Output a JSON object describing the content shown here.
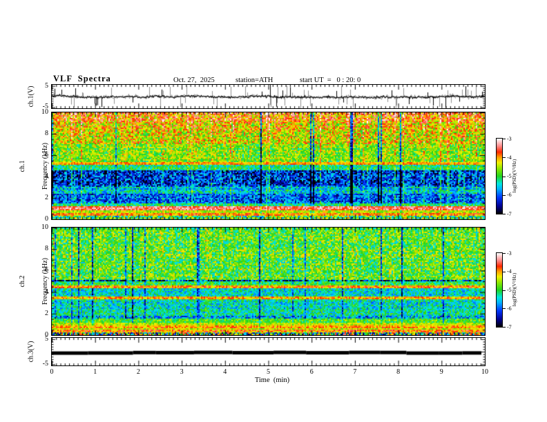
{
  "header": {
    "title": "VLF  Spectra",
    "date": "Oct. 27,  2025",
    "station": "station=ATH",
    "start_ut": "start UT  =   0 : 20: 0"
  },
  "axes": {
    "time": {
      "label": "Time  (min)",
      "tick_labels": [
        "0",
        "1",
        "2",
        "3",
        "4",
        "5",
        "6",
        "7",
        "8",
        "9",
        "10"
      ],
      "range": [
        0,
        10
      ],
      "major_step": 1,
      "minor_step": 0.1
    },
    "freq": {
      "tick_labels": [
        "10",
        "8",
        "6",
        "4",
        "2",
        "0"
      ],
      "range": [
        0,
        10
      ],
      "major_step": 2,
      "minor_step": 0.5
    },
    "volt": {
      "tick_labels": [
        "5",
        "-5"
      ],
      "range": [
        -5,
        5
      ]
    }
  },
  "ylabels": {
    "ch1v": "ch.1(V)",
    "ch1spec": [
      "ch.1",
      "Frequency (kHz)"
    ],
    "ch2spec": [
      "ch.2",
      "Frequency (kHz)"
    ],
    "ch3v": "ch.3(V)"
  },
  "colorbar": {
    "label": "log(PSD)(V²/Hz)",
    "tick_labels": [
      "-3",
      "-4",
      "-5",
      "-6",
      "-7"
    ]
  },
  "colormap": [
    [
      0.0,
      "#000000"
    ],
    [
      0.1,
      "#000090"
    ],
    [
      0.22,
      "#0038ff"
    ],
    [
      0.33,
      "#00b4ff"
    ],
    [
      0.4,
      "#00e8e0"
    ],
    [
      0.5,
      "#22d41e"
    ],
    [
      0.6,
      "#8ce800"
    ],
    [
      0.68,
      "#f0f000"
    ],
    [
      0.75,
      "#ffa000"
    ],
    [
      0.82,
      "#ff2800"
    ],
    [
      0.9,
      "#ff8c8c"
    ],
    [
      1.0,
      "#ffffff"
    ]
  ],
  "chart_data": [
    {
      "type": "line",
      "name": "ch1-voltage-waveform",
      "x_range": [
        0,
        10
      ],
      "x_unit": "min",
      "y_range": [
        -5,
        5
      ],
      "y_unit": "V",
      "summary": "Broadband noisy waveform, mean about +0.4 V, with frequent impulsive spikes reaching the +5/-5 V limits; gray high-frequency noise halo behind black trace",
      "render": {
        "seed": 101,
        "baseline": 0.4,
        "walk": 0.22,
        "noise": 0.45,
        "gray_noise": 1.0,
        "spike_prob": 0.045,
        "gray_spike_prob": 0.075,
        "spike_amp_min": 2.0,
        "spike_amp_max": 5.4
      }
    },
    {
      "type": "heatmap",
      "name": "ch1-spectrogram",
      "x_range": [
        0,
        10
      ],
      "x_unit": "min",
      "y_range": [
        0,
        10
      ],
      "y_unit": "kHz",
      "z_range": [
        -7,
        -3
      ],
      "z_label": "log(PSD)(V²/Hz)",
      "bands_format": [
        "f_lo_kHz",
        "f_hi_kHz",
        "mean_level",
        "noise",
        "streak_gain"
      ],
      "bands": [
        [
          9.0,
          10.01,
          -3.95,
          0.85,
          1.0
        ],
        [
          7.0,
          9.0,
          -4.3,
          0.85,
          1.0
        ],
        [
          5.4,
          7.0,
          -4.75,
          0.7,
          1.0
        ],
        [
          5.05,
          5.4,
          -3.95,
          0.35,
          0.3
        ],
        [
          4.6,
          5.05,
          -5.1,
          0.6,
          0.8
        ],
        [
          3.0,
          4.6,
          -6.25,
          0.95,
          1.4
        ],
        [
          2.4,
          3.0,
          -5.6,
          0.7,
          1.0
        ],
        [
          1.5,
          2.4,
          -5.95,
          0.8,
          1.0
        ],
        [
          1.25,
          1.5,
          -5.05,
          0.6,
          0.5
        ],
        [
          0.8,
          1.25,
          -3.55,
          0.45,
          0.25
        ],
        [
          0.55,
          0.8,
          -4.6,
          0.5,
          0.4
        ],
        [
          0.3,
          0.55,
          -3.85,
          0.5,
          0.25
        ],
        [
          0.0,
          0.3,
          -4.9,
          1.1,
          0.6
        ]
      ],
      "features": [
        "yellow/orange intense band 8-10 kHz with red vertical streaks",
        "dark blue/black band 3-4.6 kHz with vertical striping",
        "narrow red line near 5.2 kHz",
        "bright pale-yellow horizontal band near 1 kHz and 0.4 kHz",
        "impulsive full-height vertical streaks throughout"
      ],
      "render": {
        "seed": 7,
        "dark_prob": 0.05,
        "dark_amp": -1.5,
        "hot_prob": 0.055,
        "hot_amp": 0.5,
        "jitter": 0.35
      }
    },
    {
      "type": "heatmap",
      "name": "ch2-spectrogram",
      "x_range": [
        0,
        10
      ],
      "x_unit": "min",
      "y_range": [
        0,
        10
      ],
      "y_unit": "kHz",
      "z_range": [
        -7,
        -3
      ],
      "z_label": "log(PSD)(V²/Hz)",
      "bands_format": [
        "f_lo_kHz",
        "f_hi_kHz",
        "mean_level",
        "noise",
        "streak_gain"
      ],
      "bands": [
        [
          5.18,
          10.01,
          -4.85,
          0.75,
          1.0
        ],
        [
          4.98,
          5.18,
          -6.4,
          1.3,
          0.6
        ],
        [
          4.58,
          4.98,
          -5.05,
          0.6,
          0.6
        ],
        [
          4.38,
          4.58,
          -4.05,
          0.55,
          0.3
        ],
        [
          3.55,
          4.38,
          -5.45,
          0.6,
          0.7
        ],
        [
          3.3,
          3.55,
          -4.1,
          0.55,
          0.3
        ],
        [
          1.85,
          3.3,
          -5.35,
          0.65,
          0.7
        ],
        [
          1.55,
          1.85,
          -5.75,
          0.9,
          0.7
        ],
        [
          1.1,
          1.55,
          -4.95,
          0.55,
          0.5
        ],
        [
          0.95,
          1.1,
          -4.4,
          0.5,
          0.3
        ],
        [
          0.7,
          0.95,
          -3.95,
          0.45,
          0.25
        ],
        [
          0.5,
          0.7,
          -4.35,
          0.5,
          0.3
        ],
        [
          0.3,
          0.5,
          -3.95,
          0.6,
          0.3
        ],
        [
          0.0,
          0.3,
          -5.2,
          2.0,
          0.5
        ]
      ],
      "features": [
        "mostly green/teal field with dark vertical streaks",
        "dark line near 5.0 kHz and red/yellow line near 4.5 kHz",
        "yellow/red line near 3.4 kHz, cyan bands 2-4 kHz",
        "strong red/orange horizontal stripes below 1 kHz",
        "multicolor speckle at the lowest rows"
      ],
      "render": {
        "seed": 13,
        "dark_prob": 0.07,
        "dark_amp": -1.3,
        "hot_prob": 0.02,
        "hot_amp": 0.35,
        "jitter": 0.3
      }
    },
    {
      "type": "line",
      "name": "ch3-voltage-waveform",
      "x_range": [
        0,
        10
      ],
      "x_unit": "min",
      "y_range": [
        -5,
        5
      ],
      "y_unit": "V",
      "value": -0.45,
      "summary": "Flat thick black trace, constant at about -0.4 V across the full record",
      "render": {
        "seed": 55,
        "thickness": 5
      }
    }
  ]
}
